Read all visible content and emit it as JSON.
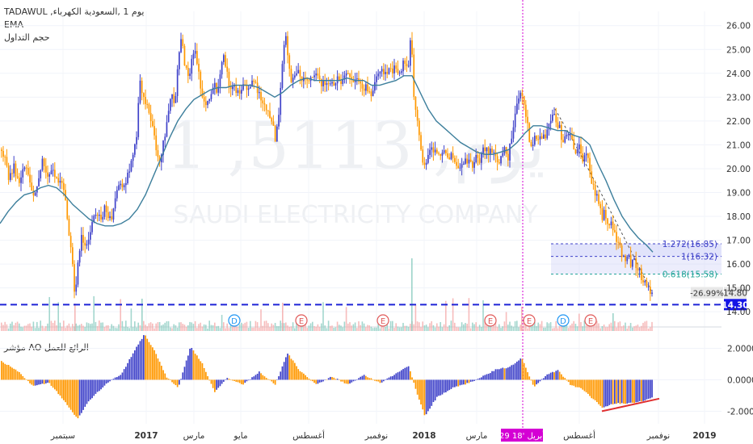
{
  "header": {
    "symbol_line": "TADAWUL ,يوم 1 ,السعودية الكهرباء",
    "indicator_ema": "EMA",
    "indicator_volume": "حجم التداول",
    "oscillator_label": "مؤشر AO الرائع للعمل"
  },
  "watermark": {
    "line1": "1 ,5113 ,يوم",
    "line2": "SAUDI ELECTRICITY COMPANY"
  },
  "colors": {
    "bull": "#3f42c9",
    "bear": "#ff9800",
    "ema": "#3d7f9c",
    "support": "#1e24d6",
    "cursor": "#d400d4",
    "fib_fill": "#c8ccf7",
    "trend_red": "#e03030",
    "vol_up": "#85c9bd",
    "vol_down": "#f4a6a6"
  },
  "chart_data": [
    {
      "type": "candlestick",
      "panel": "price",
      "y_ticks": [
        14,
        15,
        16,
        17,
        18,
        19,
        20,
        21,
        22,
        23,
        24,
        25,
        26
      ],
      "ylim": [
        13.6,
        26.6
      ],
      "x_labels": [
        "سبتمبر",
        "2017",
        "مارس",
        "مايو",
        "أغسطس",
        "نوفمبر",
        "2018",
        "مارس",
        "أغسطس",
        "نوفمبر",
        "2019"
      ],
      "cursor_label": "29 أبريل '18",
      "price_path": [
        [
          0,
          20.8
        ],
        [
          5,
          20.6
        ],
        [
          10,
          19.6
        ],
        [
          16,
          20.1
        ],
        [
          22,
          19.3
        ],
        [
          28,
          20.1
        ],
        [
          34,
          19.8
        ],
        [
          40,
          18.6
        ],
        [
          46,
          19.6
        ],
        [
          52,
          20.3
        ],
        [
          58,
          19.8
        ],
        [
          64,
          19.9
        ],
        [
          70,
          19.4
        ],
        [
          76,
          19.4
        ],
        [
          80,
          18.6
        ],
        [
          84,
          17.3
        ],
        [
          88,
          16.6
        ],
        [
          92,
          14.5
        ],
        [
          96,
          16.2
        ],
        [
          100,
          17.2
        ],
        [
          104,
          16.9
        ],
        [
          108,
          17.0
        ],
        [
          112,
          17.6
        ],
        [
          116,
          17.9
        ],
        [
          120,
          18.1
        ],
        [
          124,
          17.7
        ],
        [
          128,
          18.4
        ],
        [
          132,
          18.0
        ],
        [
          136,
          17.8
        ],
        [
          140,
          18.4
        ],
        [
          144,
          19.0
        ],
        [
          148,
          19.4
        ],
        [
          152,
          19.3
        ],
        [
          156,
          19.6
        ],
        [
          160,
          19.9
        ],
        [
          164,
          20.6
        ],
        [
          168,
          21.3
        ],
        [
          172,
          23.7
        ],
        [
          176,
          23.0
        ],
        [
          180,
          22.8
        ],
        [
          184,
          22.2
        ],
        [
          188,
          21.9
        ],
        [
          192,
          20.8
        ],
        [
          196,
          20.2
        ],
        [
          200,
          20.8
        ],
        [
          204,
          21.5
        ],
        [
          208,
          22.6
        ],
        [
          212,
          23.0
        ],
        [
          216,
          22.6
        ],
        [
          220,
          24.8
        ],
        [
          224,
          25.4
        ],
        [
          228,
          24.4
        ],
        [
          232,
          23.8
        ],
        [
          236,
          24.4
        ],
        [
          240,
          25.0
        ],
        [
          244,
          24.2
        ],
        [
          248,
          23.4
        ],
        [
          252,
          22.7
        ],
        [
          256,
          22.9
        ],
        [
          260,
          23.2
        ],
        [
          264,
          23.6
        ],
        [
          268,
          23.3
        ],
        [
          272,
          24.1
        ],
        [
          276,
          24.6
        ],
        [
          280,
          24.0
        ],
        [
          284,
          23.4
        ],
        [
          288,
          23.5
        ],
        [
          292,
          23.3
        ],
        [
          296,
          23.1
        ],
        [
          300,
          23.6
        ],
        [
          304,
          23.5
        ],
        [
          308,
          23.3
        ],
        [
          312,
          23.8
        ],
        [
          316,
          23.4
        ],
        [
          320,
          23.1
        ],
        [
          324,
          22.9
        ],
        [
          328,
          22.4
        ],
        [
          332,
          22.3
        ],
        [
          336,
          22.0
        ],
        [
          340,
          21.2
        ],
        [
          344,
          22.2
        ],
        [
          348,
          24.2
        ],
        [
          352,
          25.8
        ],
        [
          356,
          24.6
        ],
        [
          360,
          23.7
        ],
        [
          364,
          23.9
        ],
        [
          368,
          24.1
        ],
        [
          372,
          23.8
        ],
        [
          376,
          24.0
        ],
        [
          380,
          23.6
        ],
        [
          384,
          23.7
        ],
        [
          388,
          24.0
        ],
        [
          392,
          23.9
        ],
        [
          396,
          23.5
        ],
        [
          400,
          23.6
        ],
        [
          404,
          23.6
        ],
        [
          408,
          23.7
        ],
        [
          412,
          23.5
        ],
        [
          416,
          23.8
        ],
        [
          420,
          23.6
        ],
        [
          424,
          23.9
        ],
        [
          428,
          24.0
        ],
        [
          432,
          23.8
        ],
        [
          436,
          23.6
        ],
        [
          440,
          24.0
        ],
        [
          444,
          23.5
        ],
        [
          448,
          23.3
        ],
        [
          452,
          23.4
        ],
        [
          456,
          23.2
        ],
        [
          460,
          23.0
        ],
        [
          464,
          23.7
        ],
        [
          468,
          23.9
        ],
        [
          472,
          24.3
        ],
        [
          476,
          23.9
        ],
        [
          480,
          24.1
        ],
        [
          484,
          24.0
        ],
        [
          488,
          24.2
        ],
        [
          492,
          23.9
        ],
        [
          496,
          24.2
        ],
        [
          500,
          24.5
        ],
        [
          504,
          24.1
        ],
        [
          508,
          25.6
        ],
        [
          512,
          22.6
        ],
        [
          516,
          21.9
        ],
        [
          520,
          21.0
        ],
        [
          524,
          19.9
        ],
        [
          528,
          20.5
        ],
        [
          532,
          20.9
        ],
        [
          536,
          20.5
        ],
        [
          540,
          20.8
        ],
        [
          544,
          20.6
        ],
        [
          548,
          20.7
        ],
        [
          552,
          20.5
        ],
        [
          556,
          20.4
        ],
        [
          560,
          20.6
        ],
        [
          564,
          20.3
        ],
        [
          568,
          20.0
        ],
        [
          572,
          20.2
        ],
        [
          576,
          20.4
        ],
        [
          580,
          20.3
        ],
        [
          584,
          20.1
        ],
        [
          588,
          20.6
        ],
        [
          592,
          20.2
        ],
        [
          596,
          20.7
        ],
        [
          600,
          20.9
        ],
        [
          604,
          20.6
        ],
        [
          608,
          20.8
        ],
        [
          612,
          20.7
        ],
        [
          616,
          20.3
        ],
        [
          620,
          20.5
        ],
        [
          624,
          20.9
        ],
        [
          628,
          20.5
        ],
        [
          632,
          21.2
        ],
        [
          636,
          22.0
        ],
        [
          640,
          22.8
        ],
        [
          644,
          23.1
        ],
        [
          648,
          22.8
        ],
        [
          652,
          21.8
        ],
        [
          656,
          20.8
        ],
        [
          660,
          21.2
        ],
        [
          664,
          21.3
        ],
        [
          668,
          21.5
        ],
        [
          672,
          21.3
        ],
        [
          676,
          21.5
        ],
        [
          680,
          22.1
        ],
        [
          684,
          22.3
        ],
        [
          688,
          21.9
        ],
        [
          692,
          21.7
        ],
        [
          696,
          21.0
        ],
        [
          700,
          21.3
        ],
        [
          704,
          21.4
        ],
        [
          708,
          21.1
        ],
        [
          712,
          20.7
        ],
        [
          716,
          20.9
        ],
        [
          720,
          20.3
        ],
        [
          724,
          20.5
        ],
        [
          728,
          20.3
        ],
        [
          732,
          19.3
        ],
        [
          736,
          19.0
        ],
        [
          740,
          18.7
        ],
        [
          744,
          17.9
        ],
        [
          748,
          18.2
        ],
        [
          752,
          17.7
        ],
        [
          756,
          17.6
        ],
        [
          760,
          17.2
        ],
        [
          764,
          16.9
        ],
        [
          768,
          16.5
        ],
        [
          772,
          16.1
        ],
        [
          776,
          16.4
        ],
        [
          780,
          16.0
        ],
        [
          784,
          16.2
        ],
        [
          788,
          15.8
        ],
        [
          792,
          15.6
        ],
        [
          796,
          15.2
        ],
        [
          800,
          15.1
        ],
        [
          804,
          14.9
        ],
        [
          808,
          14.6
        ]
      ],
      "ema_path": [
        [
          0,
          17.7
        ],
        [
          10,
          18.2
        ],
        [
          20,
          18.6
        ],
        [
          30,
          18.9
        ],
        [
          40,
          19.0
        ],
        [
          50,
          19.2
        ],
        [
          60,
          19.3
        ],
        [
          70,
          19.2
        ],
        [
          80,
          18.9
        ],
        [
          90,
          18.5
        ],
        [
          100,
          18.2
        ],
        [
          110,
          17.9
        ],
        [
          120,
          17.7
        ],
        [
          130,
          17.6
        ],
        [
          140,
          17.6
        ],
        [
          150,
          17.7
        ],
        [
          160,
          17.9
        ],
        [
          170,
          18.3
        ],
        [
          180,
          18.9
        ],
        [
          190,
          19.7
        ],
        [
          200,
          20.5
        ],
        [
          210,
          21.3
        ],
        [
          220,
          22.0
        ],
        [
          230,
          22.5
        ],
        [
          240,
          22.9
        ],
        [
          250,
          23.1
        ],
        [
          260,
          23.3
        ],
        [
          270,
          23.4
        ],
        [
          280,
          23.4
        ],
        [
          290,
          23.5
        ],
        [
          300,
          23.5
        ],
        [
          310,
          23.5
        ],
        [
          320,
          23.4
        ],
        [
          330,
          23.2
        ],
        [
          340,
          23.0
        ],
        [
          350,
          23.2
        ],
        [
          360,
          23.5
        ],
        [
          370,
          23.7
        ],
        [
          380,
          23.8
        ],
        [
          390,
          23.7
        ],
        [
          400,
          23.7
        ],
        [
          410,
          23.7
        ],
        [
          420,
          23.7
        ],
        [
          430,
          23.8
        ],
        [
          440,
          23.7
        ],
        [
          450,
          23.7
        ],
        [
          460,
          23.5
        ],
        [
          470,
          23.5
        ],
        [
          480,
          23.6
        ],
        [
          490,
          23.7
        ],
        [
          500,
          23.9
        ],
        [
          510,
          23.9
        ],
        [
          520,
          23.2
        ],
        [
          530,
          22.5
        ],
        [
          540,
          22.0
        ],
        [
          550,
          21.7
        ],
        [
          560,
          21.4
        ],
        [
          570,
          21.1
        ],
        [
          580,
          20.9
        ],
        [
          590,
          20.7
        ],
        [
          600,
          20.6
        ],
        [
          610,
          20.6
        ],
        [
          620,
          20.7
        ],
        [
          630,
          20.8
        ],
        [
          640,
          21.1
        ],
        [
          650,
          21.5
        ],
        [
          660,
          21.8
        ],
        [
          670,
          21.8
        ],
        [
          680,
          21.7
        ],
        [
          690,
          21.6
        ],
        [
          700,
          21.6
        ],
        [
          710,
          21.4
        ],
        [
          720,
          21.3
        ],
        [
          730,
          21.0
        ],
        [
          740,
          20.2
        ],
        [
          750,
          19.5
        ],
        [
          760,
          18.7
        ],
        [
          770,
          18.0
        ],
        [
          780,
          17.5
        ],
        [
          790,
          17.1
        ],
        [
          800,
          16.8
        ],
        [
          808,
          16.5
        ]
      ],
      "support_level": 14.3,
      "support_label": "14.30",
      "last_price_label": "14.80",
      "change_label": "-26.99%",
      "fib_levels": [
        {
          "ratio_label": "1.272(16.85)",
          "value": 16.85
        },
        {
          "ratio_label": "1(16.32)",
          "value": 16.32
        },
        {
          "ratio_label": "0.618(15.58)",
          "value": 15.58
        }
      ],
      "earnings_markers": [
        "D",
        "E",
        "E",
        "E",
        "E",
        "D",
        "E"
      ]
    },
    {
      "type": "histogram",
      "panel": "awesome_oscillator",
      "y_ticks": [
        -2.0,
        0.0,
        2.0
      ],
      "y_tick_labels": [
        "-2.0000",
        "0.0000",
        "2.0000"
      ],
      "ylim": [
        -2.8,
        3.0
      ],
      "ao_path": [
        [
          0,
          1.2
        ],
        [
          20,
          0.6
        ],
        [
          40,
          -0.4
        ],
        [
          60,
          -0.2
        ],
        [
          80,
          -1.4
        ],
        [
          95,
          -2.5
        ],
        [
          110,
          -1.3
        ],
        [
          130,
          -0.3
        ],
        [
          150,
          0.4
        ],
        [
          165,
          1.8
        ],
        [
          178,
          2.9
        ],
        [
          190,
          1.9
        ],
        [
          205,
          0.2
        ],
        [
          220,
          -0.5
        ],
        [
          235,
          2.1
        ],
        [
          250,
          1.0
        ],
        [
          265,
          -0.8
        ],
        [
          280,
          0.1
        ],
        [
          300,
          -0.3
        ],
        [
          320,
          0.5
        ],
        [
          340,
          -0.3
        ],
        [
          355,
          1.7
        ],
        [
          370,
          0.6
        ],
        [
          390,
          -0.3
        ],
        [
          410,
          0.2
        ],
        [
          430,
          -0.3
        ],
        [
          450,
          0.3
        ],
        [
          470,
          -0.2
        ],
        [
          490,
          0.4
        ],
        [
          505,
          0.9
        ],
        [
          515,
          -0.8
        ],
        [
          525,
          -2.3
        ],
        [
          540,
          -1.1
        ],
        [
          560,
          -0.5
        ],
        [
          580,
          -0.2
        ],
        [
          600,
          0.3
        ],
        [
          615,
          0.7
        ],
        [
          630,
          0.8
        ],
        [
          645,
          1.4
        ],
        [
          660,
          -0.5
        ],
        [
          675,
          0.3
        ],
        [
          690,
          0.6
        ],
        [
          705,
          -0.3
        ],
        [
          720,
          -0.6
        ],
        [
          735,
          -1.3
        ],
        [
          745,
          -1.8
        ],
        [
          760,
          -1.5
        ],
        [
          775,
          -1.5
        ],
        [
          790,
          -1.4
        ],
        [
          808,
          -1.1
        ]
      ]
    }
  ]
}
